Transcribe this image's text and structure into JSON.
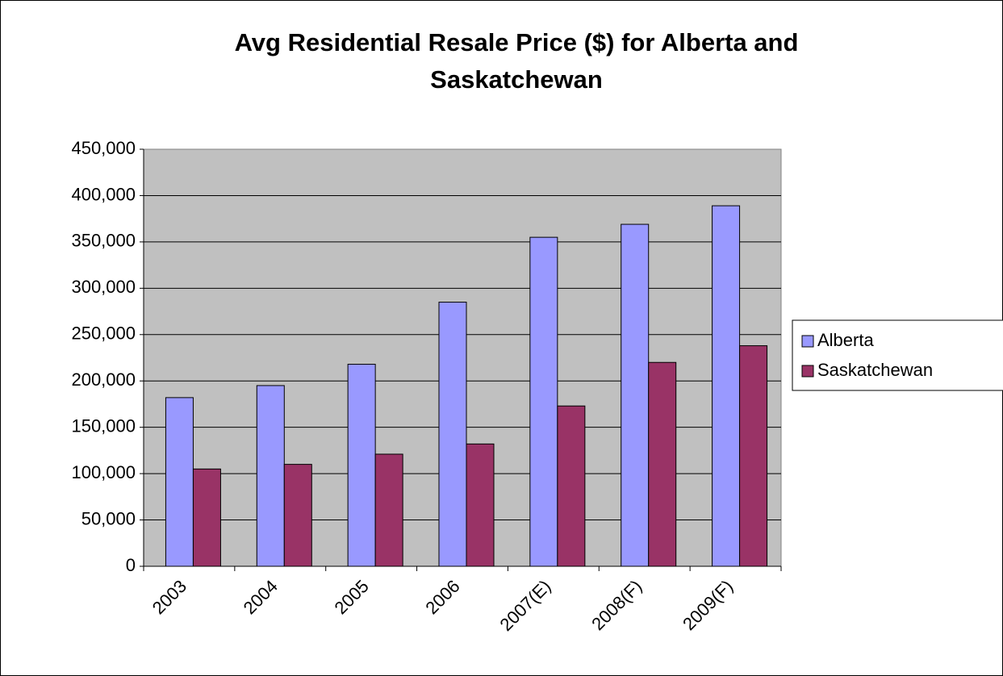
{
  "chart_data": {
    "type": "bar",
    "title": "Avg Residential Resale Price ($) for Alberta and Saskatchewan",
    "categories": [
      "2003",
      "2004",
      "2005",
      "2006",
      "2007(E)",
      "2008(F)",
      "2009(F)"
    ],
    "series": [
      {
        "name": "Alberta",
        "color": "#9999ff",
        "values": [
          182000,
          195000,
          218000,
          285000,
          355000,
          369000,
          389000
        ]
      },
      {
        "name": "Saskatchewan",
        "color": "#993366",
        "values": [
          105000,
          110000,
          121000,
          132000,
          173000,
          220000,
          238000
        ]
      }
    ],
    "ylim": [
      0,
      450000
    ],
    "yticks": [
      0,
      {
        "value": 50000,
        "label": "50,000"
      },
      {
        "value": 100000,
        "label": "100,000"
      },
      {
        "value": 150000,
        "label": "150,000"
      },
      {
        "value": 200000,
        "label": "200,000"
      },
      {
        "value": 250000,
        "label": "250,000"
      },
      {
        "value": 300000,
        "label": "300,000"
      },
      {
        "value": 350000,
        "label": "350,000"
      },
      {
        "value": 400000,
        "label": "400,000"
      },
      {
        "value": 450000,
        "label": "450,000"
      }
    ],
    "grid": true,
    "legend": "right"
  }
}
